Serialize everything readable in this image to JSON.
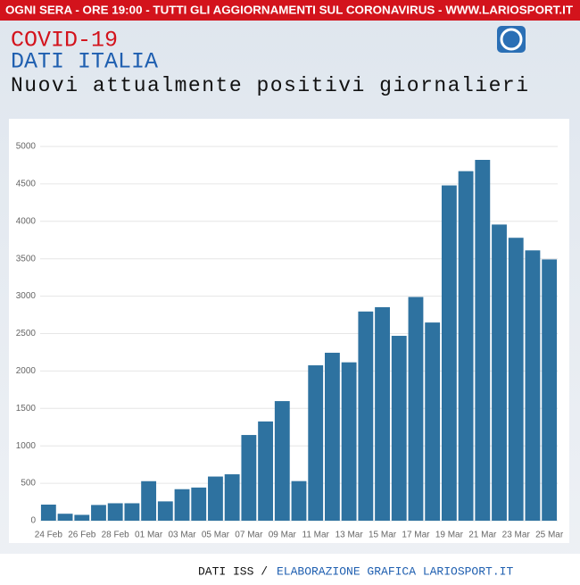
{
  "header": {
    "banner": "OGNI SERA - ORE 19:00 - TUTTI GLI AGGIORNAMENTI SUL CORONAVIRUS - WWW.LARIOSPORT.IT",
    "title": "COVID-19",
    "subtitle": "DATI ITALIA"
  },
  "chart_data": {
    "type": "bar",
    "title": "Nuovi attualmente positivi giornalieri",
    "categories": [
      "24 Feb",
      null,
      "26 Feb",
      null,
      "28 Feb",
      null,
      "01 Mar",
      null,
      "03 Mar",
      null,
      "05 Mar",
      null,
      "07 Mar",
      null,
      "09 Mar",
      null,
      "11 Mar",
      null,
      "13 Mar",
      null,
      "15 Mar",
      null,
      "17 Mar",
      null,
      "19 Mar",
      null,
      "21 Mar",
      null,
      "23 Mar",
      null,
      "25 Mar"
    ],
    "values": [
      215,
      93,
      78,
      210,
      233,
      233,
      528,
      258,
      421,
      443,
      590,
      620,
      1145,
      1326,
      1598,
      529,
      2076,
      2244,
      2116,
      2795,
      2853,
      2470,
      2989,
      2648,
      4480,
      4670,
      4821,
      3957,
      3780,
      3612,
      3491
    ],
    "color": "#2e72a0",
    "ylim": [
      0,
      5000
    ],
    "yticks": [
      0,
      500,
      1000,
      1500,
      2000,
      2500,
      3000,
      3500,
      4000,
      4500,
      5000
    ],
    "grid": true
  },
  "footer": {
    "source": "DATI ISS /",
    "credit": "ELABORAZIONE GRAFICA LARIOSPORT.IT"
  }
}
